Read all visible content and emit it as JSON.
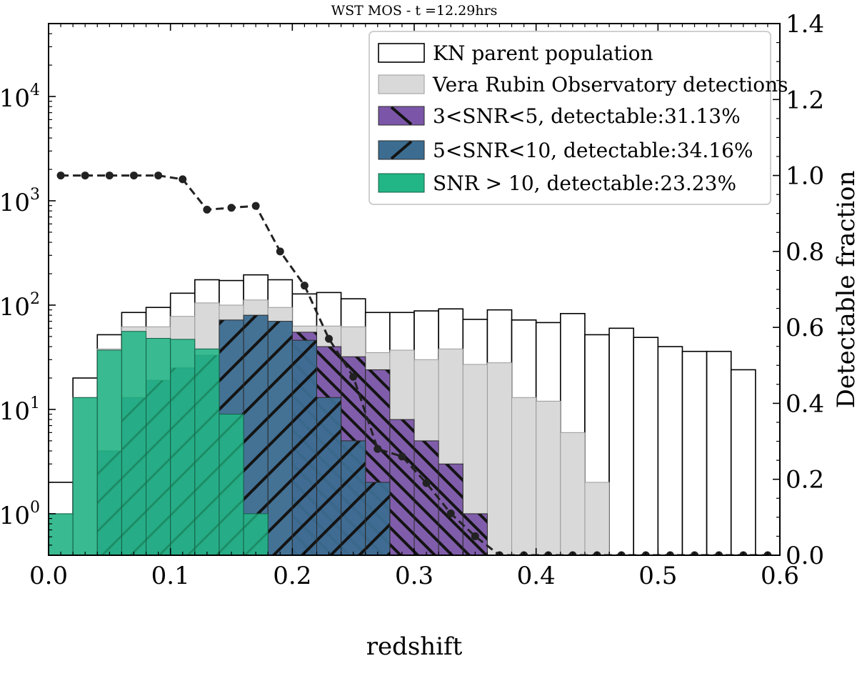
{
  "chart_data": {
    "type": "bar",
    "title": "WST MOS - t =12.29hrs",
    "xlabel": "redshift",
    "ylabel": "",
    "y2label": "Detectable fraction",
    "xlim": [
      0.0,
      0.6
    ],
    "ylim_log": [
      0.4,
      50000
    ],
    "y2lim": [
      0.0,
      1.4
    ],
    "yscale": "log",
    "grid": false,
    "legend_position": "top-right",
    "xticks": [
      "0.0",
      "0.1",
      "0.2",
      "0.3",
      "0.4",
      "0.5",
      "0.6"
    ],
    "yticks": [
      {
        "base": "10",
        "exp": "0",
        "value": 1
      },
      {
        "base": "10",
        "exp": "1",
        "value": 10
      },
      {
        "base": "10",
        "exp": "2",
        "value": 100
      },
      {
        "base": "10",
        "exp": "3",
        "value": 1000
      },
      {
        "base": "10",
        "exp": "4",
        "value": 10000
      }
    ],
    "y2ticks": [
      "0.0",
      "0.2",
      "0.4",
      "0.6",
      "0.8",
      "1.0",
      "1.2",
      "1.4"
    ],
    "bin_edges": [
      0.0,
      0.02,
      0.04,
      0.06,
      0.08,
      0.1,
      0.12,
      0.14,
      0.16,
      0.18,
      0.2,
      0.22,
      0.24,
      0.26,
      0.28,
      0.3,
      0.32,
      0.34,
      0.36,
      0.38,
      0.4,
      0.42,
      0.44,
      0.46,
      0.48,
      0.5,
      0.52,
      0.54,
      0.56,
      0.58,
      0.6
    ],
    "series": [
      {
        "name": "KN parent population",
        "style": "outline",
        "color": "#ffffff",
        "values": [
          2,
          20,
          52,
          85,
          95,
          130,
          175,
          172,
          195,
          175,
          128,
          132,
          115,
          85,
          85,
          88,
          92,
          73,
          90,
          72,
          68,
          83,
          52,
          60,
          49,
          40,
          36,
          36,
          24,
          0
        ]
      },
      {
        "name": "Vera Rubin Observatory detections",
        "style": "fill",
        "color": "#d9d9d9",
        "values": [
          1,
          13,
          38,
          62,
          62,
          78,
          105,
          100,
          112,
          95,
          63,
          63,
          62,
          35,
          37,
          30,
          38,
          27,
          28,
          13,
          12,
          6,
          2,
          0,
          0,
          0,
          0,
          0,
          0,
          0
        ]
      },
      {
        "name": "3<SNR<5, detectable:31.13%",
        "style": "hatch-back",
        "color": "#7b56a8",
        "values": [
          0,
          0,
          0,
          0,
          0,
          0,
          0,
          0,
          0,
          0,
          55,
          40,
          32,
          24,
          8,
          5,
          3,
          1,
          0,
          0,
          0,
          0,
          0,
          0,
          0,
          0,
          0,
          0,
          0,
          0
        ]
      },
      {
        "name": "5<SNR<10, detectable:34.16%",
        "style": "hatch-fwd",
        "color": "#3c6d91",
        "values": [
          0,
          0,
          4,
          13,
          19,
          25,
          33,
          72,
          80,
          70,
          46,
          13,
          5,
          2,
          0,
          0,
          0,
          0,
          0,
          0,
          0,
          0,
          0,
          0,
          0,
          0,
          0,
          0,
          0,
          0
        ]
      },
      {
        "name": "SNR > 10, detectable:23.23%",
        "style": "fill-alpha",
        "color": "#22b585",
        "values": [
          1,
          13,
          37,
          56,
          48,
          47,
          38,
          9,
          1,
          0,
          0,
          0,
          0,
          0,
          0,
          0,
          0,
          0,
          0,
          0,
          0,
          0,
          0,
          0,
          0,
          0,
          0,
          0,
          0,
          0
        ]
      }
    ],
    "fraction_line": {
      "color": "#222222",
      "x": [
        0.01,
        0.03,
        0.05,
        0.07,
        0.09,
        0.11,
        0.13,
        0.15,
        0.17,
        0.19,
        0.21,
        0.23,
        0.25,
        0.27,
        0.29,
        0.31,
        0.33,
        0.35,
        0.37,
        0.39,
        0.41,
        0.43,
        0.45,
        0.47,
        0.49,
        0.51,
        0.53,
        0.55,
        0.57,
        0.59
      ],
      "y": [
        1.0,
        1.0,
        1.0,
        1.0,
        1.0,
        0.99,
        0.91,
        0.915,
        0.92,
        0.8,
        0.71,
        0.57,
        0.47,
        0.28,
        0.26,
        0.19,
        0.11,
        0.05,
        0.0,
        0.0,
        0.0,
        0.0,
        0.0,
        0.0,
        0.0,
        0.0,
        0.0,
        0.0,
        0.0,
        0.0
      ]
    }
  }
}
